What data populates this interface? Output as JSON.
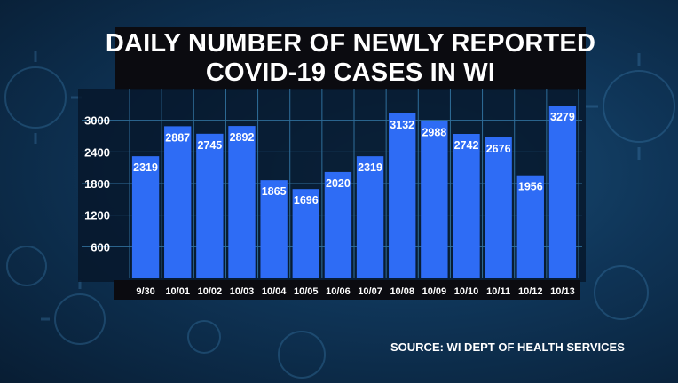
{
  "header": {
    "title_line1": "DAILY NUMBER OF NEWLY REPORTED",
    "title_line2": "COVID-19 CASES IN WI"
  },
  "source": "SOURCE: WI DEPT OF HEALTH SERVICES",
  "colors": {
    "bar": "#2e6cf5",
    "grid": "#2f6e9a",
    "background": "#0f3558",
    "title_bg": "#0b0b10",
    "text": "#ffffff"
  },
  "chart_data": {
    "type": "bar",
    "title": "DAILY NUMBER OF NEWLY REPORTED COVID-19 CASES IN WI",
    "categories": [
      "9/30",
      "10/01",
      "10/02",
      "10/03",
      "10/04",
      "10/05",
      "10/06",
      "10/07",
      "10/08",
      "10/09",
      "10/10",
      "10/11",
      "10/12",
      "10/13"
    ],
    "values": [
      2319,
      2887,
      2745,
      2892,
      1865,
      1696,
      2020,
      2319,
      3132,
      2988,
      2742,
      2676,
      1956,
      3279
    ],
    "yticks": [
      600,
      1200,
      1800,
      2400,
      3000
    ],
    "ylim": [
      0,
      3600
    ],
    "grid": true,
    "data_labels": true
  }
}
